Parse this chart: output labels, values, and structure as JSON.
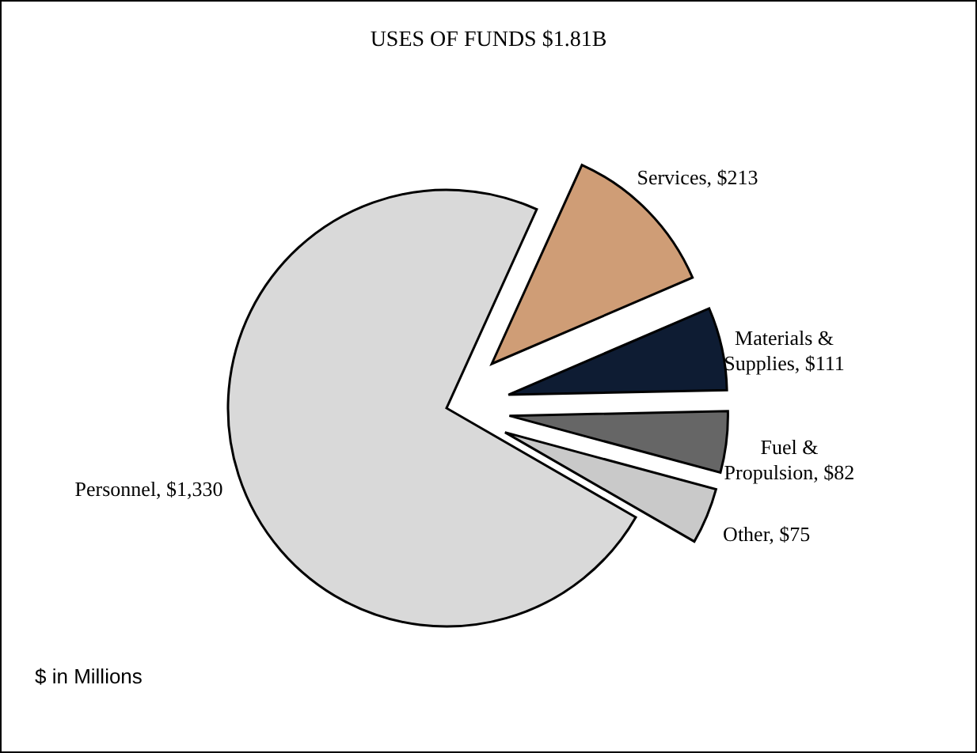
{
  "chart_data": {
    "type": "pie",
    "title": "USES OF FUNDS $1.81B",
    "categories": [
      "Personnel",
      "Services",
      "Materials & Supplies",
      "Fuel & Propulsion",
      "Other"
    ],
    "values": [
      1330,
      213,
      111,
      82,
      75
    ],
    "value_labels": [
      "$1,330",
      "$213",
      "$111",
      "$82",
      "$75"
    ],
    "colors": [
      "#d9d9d9",
      "#cf9d76",
      "#0e1c33",
      "#666666",
      "#c9c9c9"
    ],
    "legend": false,
    "annotations": [
      "$ in Millions"
    ]
  }
}
